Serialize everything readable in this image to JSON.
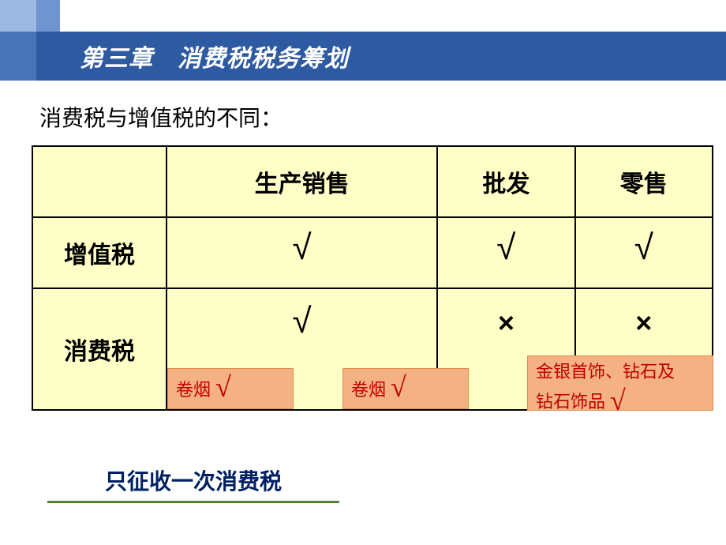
{
  "header": {
    "chapter_title": "第三章　消费税税务筹划"
  },
  "subtitle": "消费税与增值税的不同：",
  "table": {
    "columns": [
      "",
      "生产销售",
      "批发",
      "零售"
    ],
    "rows": [
      {
        "label": "增值税",
        "cells": [
          "√",
          "√",
          "√"
        ]
      },
      {
        "label": "消费税",
        "cells": [
          "√",
          "×",
          "×"
        ]
      }
    ]
  },
  "annotations": {
    "a": {
      "text": "卷烟",
      "mark": "√"
    },
    "b": {
      "text": "卷烟",
      "mark": "√"
    },
    "c": {
      "line1": "金银首饰、钻石及",
      "line2_text": "钻石饰品",
      "mark": "√"
    }
  },
  "bottom_note": "只征收一次消费税",
  "colors": {
    "title_bar": "#2d5aa0",
    "corner_light": "#9bb8e3",
    "corner_mid": "#6f94cf",
    "corner_dark": "#4a74b8",
    "table_bg": "#feffc6",
    "annot_bg": "#f4b183",
    "annot_text": "#c00000",
    "note_text": "#002060",
    "underline": "#548235"
  }
}
